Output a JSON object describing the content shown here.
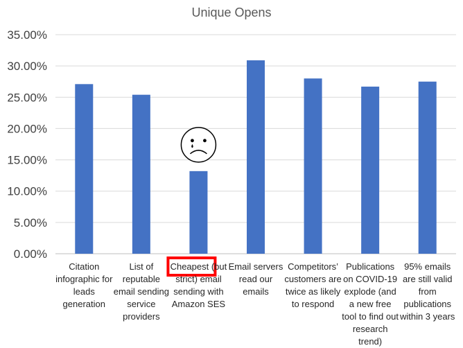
{
  "chart_data": {
    "type": "bar",
    "title": "Unique Opens",
    "categories": [
      "Citation infographic for leads generation",
      "List of reputable email sending service providers",
      "Cheapest (but strict) email sending with Amazon SES",
      "Email servers read our emails",
      "Competitors’ customers are twice as likely to respond",
      "Publications on COVID-19 explode (and a new free tool to find out research trend)",
      "95% emails are still valid from publications within 3 years"
    ],
    "values": [
      0.271,
      0.254,
      0.132,
      0.309,
      0.28,
      0.267,
      0.275
    ],
    "ylim": [
      0,
      0.35
    ],
    "yticks": [
      "0.00%",
      "5.00%",
      "10.00%",
      "15.00%",
      "20.00%",
      "25.00%",
      "30.00%",
      "35.00%"
    ],
    "grid": true,
    "bar_color": "#4472c4",
    "annotations": [
      {
        "type": "sad-face",
        "category_index": 2
      },
      {
        "type": "highlight-box",
        "category_index": 2,
        "text": "Cheapest",
        "color": "#ff0000"
      }
    ]
  }
}
